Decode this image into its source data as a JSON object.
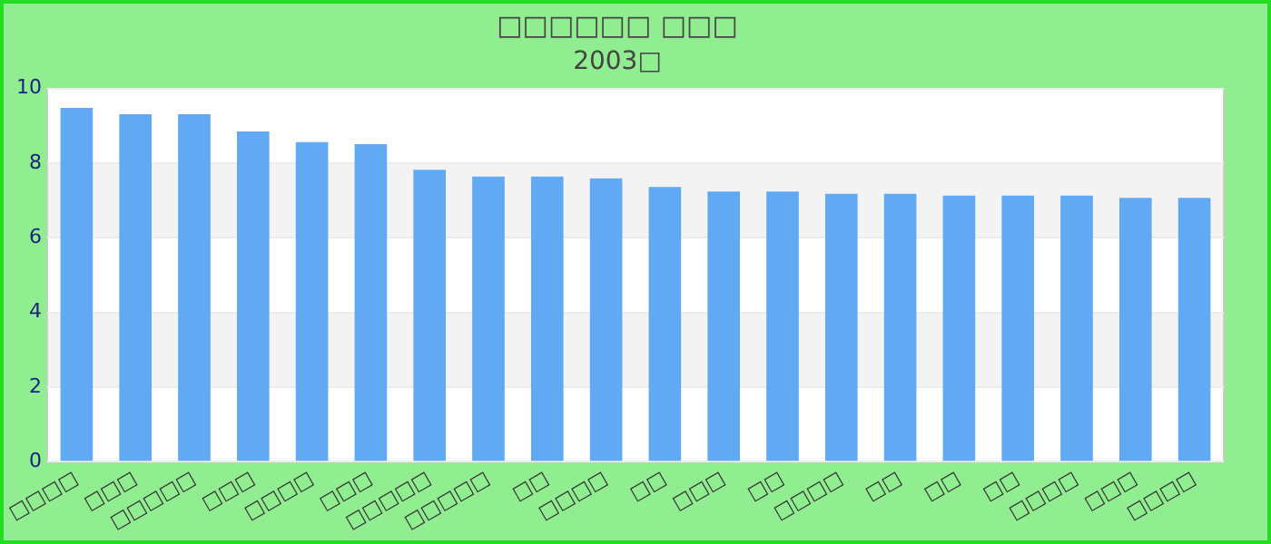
{
  "chart_data": {
    "type": "bar",
    "title": "□□□□□□ □□□",
    "subtitle": "2003□",
    "categories": [
      "□□□□",
      "□□□",
      "□□□□□",
      "□□□",
      "□□□□",
      "□□□",
      "□□□□□",
      "□□□□□",
      "□□",
      "□□□□",
      "□□",
      "□□□",
      "□□",
      "□□□□",
      "□□",
      "□□",
      "□□",
      "□□□□",
      "□□□",
      "□□□□"
    ],
    "values": [
      9.48,
      9.31,
      9.31,
      8.85,
      8.56,
      8.51,
      7.82,
      7.64,
      7.64,
      7.59,
      7.36,
      7.24,
      7.24,
      7.18,
      7.18,
      7.13,
      7.13,
      7.13,
      7.07,
      7.07
    ],
    "color": "#62a9f3",
    "ylim": [
      0,
      10
    ],
    "yticks": [
      0,
      2,
      4,
      6,
      8,
      10
    ],
    "grid": "y"
  }
}
